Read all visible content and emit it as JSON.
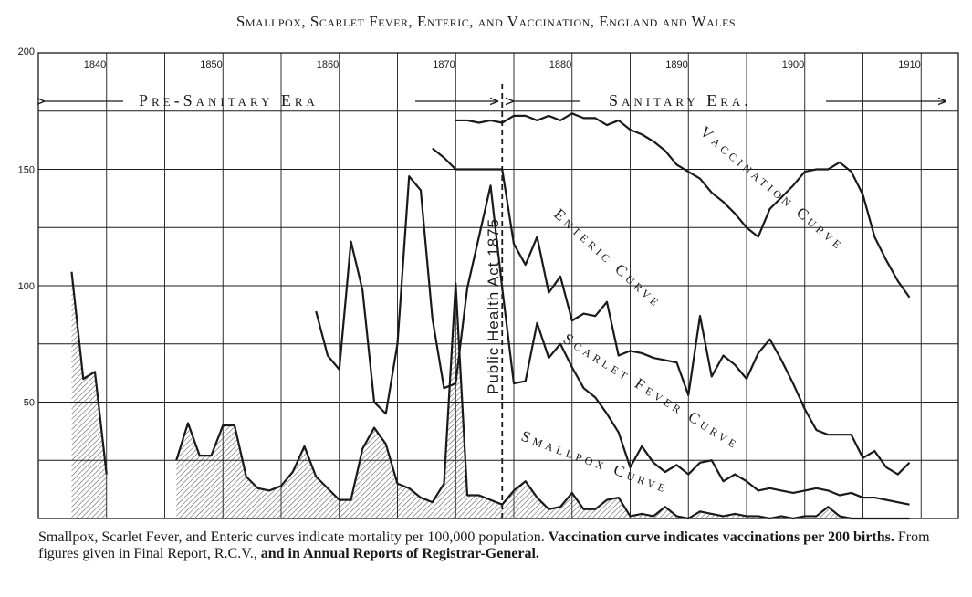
{
  "title": "Smallpox, Scarlet Fever, Enteric, and Vaccination, England and Wales",
  "caption": {
    "part1": "Smallpox, Scarlet Fever, and Enteric curves indicate mortality per 100,000 population. ",
    "part2": "Vaccination curve indicates vaccinations per 200 births. ",
    "part3": "From figures given in Final Report, R.C.V., ",
    "part4": "and in Annual Reports of Registrar-General."
  },
  "annotations": {
    "pre_sanitary": "Pre-Sanitary Era",
    "sanitary": "Sanitary Era.",
    "act": "Public Health Act 1875",
    "vaccination": "Vaccination Curve",
    "enteric": "Enteric Curve",
    "scarlet": "Scarlet Fever Curve",
    "smallpox": "Smallpox Curve"
  },
  "chart_data": {
    "type": "line",
    "title": "Smallpox, Scarlet Fever, Enteric, and Vaccination, England and Wales",
    "xlim": [
      1836,
      1912
    ],
    "ylim": [
      0,
      200
    ],
    "x_ticks": [
      1840,
      1850,
      1860,
      1870,
      1880,
      1890,
      1900,
      1910
    ],
    "x_tick_labels": [
      "1840",
      "1850",
      "1860",
      "1870",
      "1880",
      "1890",
      "1900",
      "1910"
    ],
    "y_ticks": [
      0,
      50,
      100,
      150,
      200
    ],
    "y_tick_labels": [
      "",
      "50",
      "100",
      "150",
      "200"
    ],
    "grid": true,
    "vline": {
      "x": 1875,
      "label": "Public Health Act 1875"
    },
    "series": [
      {
        "name": "Vaccination Curve",
        "color": "#1a1a1a",
        "x": [
          1871,
          1872,
          1873,
          1874,
          1875,
          1876,
          1877,
          1878,
          1879,
          1880,
          1881,
          1882,
          1883,
          1884,
          1885,
          1886,
          1887,
          1888,
          1889,
          1890,
          1891,
          1892,
          1893,
          1894,
          1895,
          1896,
          1897,
          1898,
          1899,
          1900,
          1901,
          1902,
          1903,
          1904,
          1905,
          1906,
          1907,
          1908,
          1909,
          1910
        ],
        "y": [
          171,
          171,
          170,
          171,
          170,
          173,
          173,
          171,
          173,
          171,
          174,
          172,
          172,
          169,
          171,
          167,
          165,
          162,
          158,
          152,
          149,
          146,
          140,
          136,
          131,
          125,
          121,
          133,
          138,
          143,
          149,
          150,
          150,
          153,
          149,
          139,
          121,
          111,
          102,
          95
        ]
      },
      {
        "name": "Enteric Curve",
        "color": "#1a1a1a",
        "x": [
          1869,
          1870,
          1871,
          1872,
          1873,
          1874,
          1875,
          1876,
          1877,
          1878,
          1879,
          1880,
          1881,
          1882,
          1883,
          1884,
          1885,
          1886,
          1887,
          1888,
          1889,
          1890,
          1891,
          1892,
          1893,
          1894,
          1895,
          1896,
          1897,
          1898,
          1899,
          1900,
          1901,
          1902,
          1903,
          1904,
          1905,
          1906,
          1907,
          1908,
          1909,
          1910
        ],
        "y": [
          159,
          155,
          150,
          150,
          150,
          150,
          150,
          118,
          109,
          121,
          97,
          104,
          85,
          88,
          87,
          93,
          70,
          72,
          71,
          69,
          68,
          67,
          53,
          87,
          61,
          70,
          66,
          60,
          71,
          77,
          68,
          58,
          47,
          38,
          36,
          36,
          36,
          26,
          29,
          22,
          19,
          24
        ]
      },
      {
        "name": "Scarlet Fever Curve",
        "color": "#1a1a1a",
        "x": [
          1859,
          1860,
          1861,
          1862,
          1863,
          1864,
          1865,
          1866,
          1867,
          1868,
          1869,
          1870,
          1871,
          1872,
          1873,
          1874,
          1875,
          1876,
          1877,
          1878,
          1879,
          1880,
          1881,
          1882,
          1883,
          1884,
          1885,
          1886,
          1887,
          1888,
          1889,
          1890,
          1891,
          1892,
          1893,
          1894,
          1895,
          1896,
          1897,
          1898,
          1899,
          1900,
          1901,
          1902,
          1903,
          1904,
          1905,
          1906,
          1907,
          1908,
          1909,
          1910
        ],
        "y": [
          89,
          70,
          64,
          119,
          98,
          50,
          45,
          75,
          147,
          141,
          86,
          56,
          58,
          99,
          121,
          143,
          99,
          58,
          59,
          84,
          69,
          75,
          65,
          56,
          52,
          45,
          37,
          22,
          31,
          24,
          20,
          23,
          19,
          24,
          25,
          16,
          19,
          16,
          12,
          13,
          12,
          11,
          12,
          13,
          12,
          10,
          11,
          9,
          9,
          8,
          7,
          6
        ]
      },
      {
        "name": "Smallpox Curve",
        "color": "#1a1a1a",
        "x": [
          1838,
          1839,
          1840,
          1841,
          1847,
          1848,
          1849,
          1850,
          1851,
          1852,
          1853,
          1854,
          1855,
          1856,
          1857,
          1858,
          1859,
          1860,
          1861,
          1862,
          1863,
          1864,
          1865,
          1866,
          1867,
          1868,
          1869,
          1870,
          1871,
          1872,
          1873,
          1874,
          1875,
          1876,
          1877,
          1878,
          1879,
          1880,
          1881,
          1882,
          1883,
          1884,
          1885,
          1886,
          1887,
          1888,
          1889,
          1890,
          1891,
          1892,
          1893,
          1894,
          1895,
          1896,
          1897,
          1898,
          1899,
          1900,
          1901,
          1902,
          1903,
          1904,
          1905,
          1906,
          1907,
          1908,
          1909,
          1910
        ],
        "y": [
          106,
          60,
          63,
          19,
          25,
          41,
          27,
          27,
          40,
          40,
          18,
          13,
          12,
          14,
          20,
          31,
          18,
          13,
          8,
          8,
          30,
          39,
          32,
          15,
          13,
          9,
          7,
          15,
          101,
          10,
          10,
          8,
          6,
          12,
          16,
          9,
          4,
          5,
          11,
          4,
          4,
          8,
          9,
          1,
          2,
          1,
          5,
          1,
          0,
          3,
          2,
          1,
          2,
          1,
          1,
          0,
          1,
          0,
          1,
          1,
          5,
          1,
          0,
          0,
          0,
          0,
          0,
          0
        ]
      }
    ]
  }
}
